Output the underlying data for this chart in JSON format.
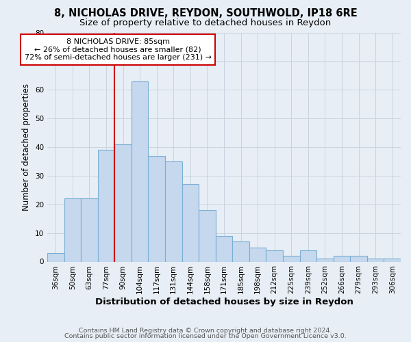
{
  "title1": "8, NICHOLAS DRIVE, REYDON, SOUTHWOLD, IP18 6RE",
  "title2": "Size of property relative to detached houses in Reydon",
  "xlabel": "Distribution of detached houses by size in Reydon",
  "ylabel": "Number of detached properties",
  "categories": [
    "36sqm",
    "50sqm",
    "63sqm",
    "77sqm",
    "90sqm",
    "104sqm",
    "117sqm",
    "131sqm",
    "144sqm",
    "158sqm",
    "171sqm",
    "185sqm",
    "198sqm",
    "212sqm",
    "225sqm",
    "239sqm",
    "252sqm",
    "266sqm",
    "279sqm",
    "293sqm",
    "306sqm"
  ],
  "values": [
    3,
    22,
    22,
    39,
    41,
    63,
    37,
    35,
    27,
    18,
    9,
    7,
    5,
    4,
    2,
    4,
    1,
    2,
    2,
    1,
    1
  ],
  "bar_color": "#c5d8ed",
  "bar_edge_color": "#7aafd4",
  "red_line_x": 4.0,
  "annotation_line1": "8 NICHOLAS DRIVE: 85sqm",
  "annotation_line2": "← 26% of detached houses are smaller (82)",
  "annotation_line3": "72% of semi-detached houses are larger (231) →",
  "annot_box_color": "white",
  "annot_box_edge_color": "#cc0000",
  "bg_color": "#e8eef5",
  "ylim": [
    0,
    80
  ],
  "yticks": [
    0,
    10,
    20,
    30,
    40,
    50,
    60,
    70,
    80
  ],
  "footer1": "Contains HM Land Registry data © Crown copyright and database right 2024.",
  "footer2": "Contains public sector information licensed under the Open Government Licence v3.0.",
  "title1_fontsize": 10.5,
  "title2_fontsize": 9.5,
  "xlabel_fontsize": 9.5,
  "ylabel_fontsize": 8.5,
  "tick_fontsize": 7.5,
  "annot_fontsize": 8,
  "footer_fontsize": 6.8
}
